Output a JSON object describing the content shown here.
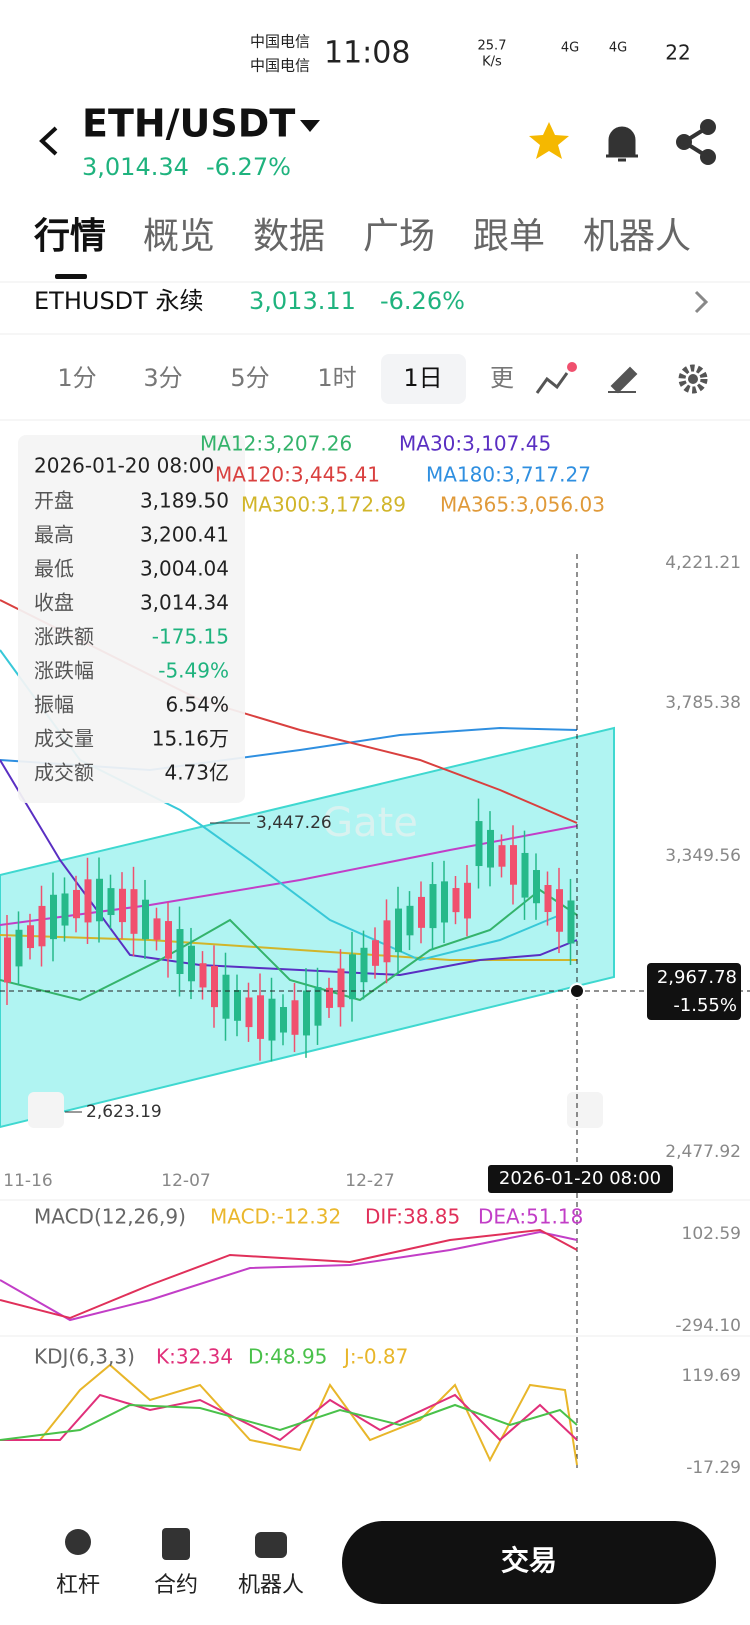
{
  "status": {
    "carrier1": "中国电信",
    "carrier2": "中国电信",
    "time": "11:08",
    "speed": "25.7",
    "speed_unit": "K/s",
    "net1": "4G",
    "net2": "4G",
    "battery": "22"
  },
  "header": {
    "pair": "ETH/USDT",
    "price": "3,014.34",
    "change": "-6.27%"
  },
  "tabs": [
    "行情",
    "概览",
    "数据",
    "广场",
    "跟单",
    "机器人"
  ],
  "perp": {
    "name": "ETHUSDT 永续",
    "price": "3,013.11",
    "change": "-6.26%"
  },
  "intervals": [
    "1分",
    "3分",
    "5分",
    "1时",
    "1日",
    "更"
  ],
  "ma_legend": {
    "ma12": "MA12:3,207.26",
    "ma30": "MA30:3,107.45",
    "ma120": "MA120:3,445.41",
    "ma180": "MA180:3,717.27",
    "ma300": "MA300:3,172.89",
    "ma365": "MA365:3,056.03"
  },
  "tooltip": {
    "date": "2026-01-20 08:00",
    "rows": [
      [
        "开盘",
        "3,189.50"
      ],
      [
        "最高",
        "3,200.41"
      ],
      [
        "最低",
        "3,004.04"
      ],
      [
        "收盘",
        "3,014.34"
      ],
      [
        "涨跌额",
        "-175.15"
      ],
      [
        "涨跌幅",
        "-5.49%"
      ],
      [
        "振幅",
        "6.54%"
      ],
      [
        "成交量",
        "15.16万"
      ],
      [
        "成交额",
        "4.73亿"
      ]
    ]
  },
  "price_axis": [
    "4,221.21",
    "3,785.38",
    "3,349.56",
    "2,477.92"
  ],
  "annotations": {
    "high": "3,447.26",
    "low": "2,623.19"
  },
  "current": {
    "price": "2,967.78",
    "change": "-1.55%"
  },
  "dates": [
    "11-16",
    "12-07",
    "12-27"
  ],
  "crosshair_date": "2026-01-20 08:00",
  "macd": {
    "title": "MACD(12,26,9)",
    "macd": "MACD:-12.32",
    "dif": "DIF:38.85",
    "dea": "DEA:51.18",
    "axis": [
      "102.59",
      "-294.10"
    ]
  },
  "kdj": {
    "title": "KDJ(6,3,3)",
    "k": "K:32.34",
    "d": "D:48.95",
    "j": "J:-0.87",
    "axis": [
      "119.69",
      "-17.29"
    ]
  },
  "nav": [
    "杠杆",
    "合约",
    "机器人"
  ],
  "trade": "交易"
}
